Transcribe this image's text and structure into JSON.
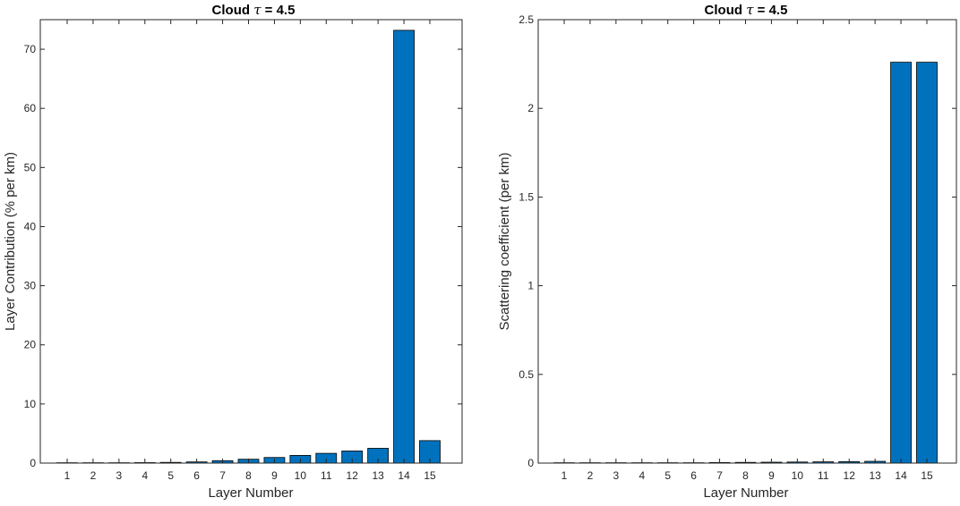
{
  "colors": {
    "bar_fill": "#0072BD",
    "axis": "#262626"
  },
  "chart_data": [
    {
      "type": "bar",
      "title_main": "Cloud ",
      "title_symbol": "τ",
      "title_rest": " = 4.5",
      "xlabel": "Layer Number",
      "ylabel": "Layer Contribution (% per km)",
      "ylim": [
        0,
        75
      ],
      "yticks": [
        0,
        10,
        20,
        30,
        40,
        50,
        60,
        70
      ],
      "ytick_labels": [
        "0",
        "10",
        "20",
        "30",
        "40",
        "50",
        "60",
        "70"
      ],
      "categories": [
        "1",
        "2",
        "3",
        "4",
        "5",
        "6",
        "7",
        "8",
        "9",
        "10",
        "11",
        "12",
        "13",
        "14",
        "15"
      ],
      "values": [
        0.02,
        0.03,
        0.05,
        0.08,
        0.12,
        0.2,
        0.4,
        0.65,
        0.95,
        1.3,
        1.65,
        2.05,
        2.5,
        73.2,
        3.8
      ],
      "grid": false
    },
    {
      "type": "bar",
      "title_main": "Cloud ",
      "title_symbol": "τ",
      "title_rest": " = 4.5",
      "xlabel": "Layer Number",
      "ylabel": "Scattering coefficient (per km)",
      "ylim": [
        0,
        2.5
      ],
      "yticks": [
        0,
        0.5,
        1,
        1.5,
        2,
        2.5
      ],
      "ytick_labels": [
        "0",
        "0.5",
        "1",
        "1.5",
        "2",
        "2.5"
      ],
      "categories": [
        "1",
        "2",
        "3",
        "4",
        "5",
        "6",
        "7",
        "8",
        "9",
        "10",
        "11",
        "12",
        "13",
        "14",
        "15"
      ],
      "values": [
        0.0005,
        0.0007,
        0.001,
        0.0013,
        0.0017,
        0.002,
        0.003,
        0.004,
        0.005,
        0.006,
        0.007,
        0.008,
        0.01,
        2.26,
        2.26
      ],
      "grid": false
    }
  ]
}
